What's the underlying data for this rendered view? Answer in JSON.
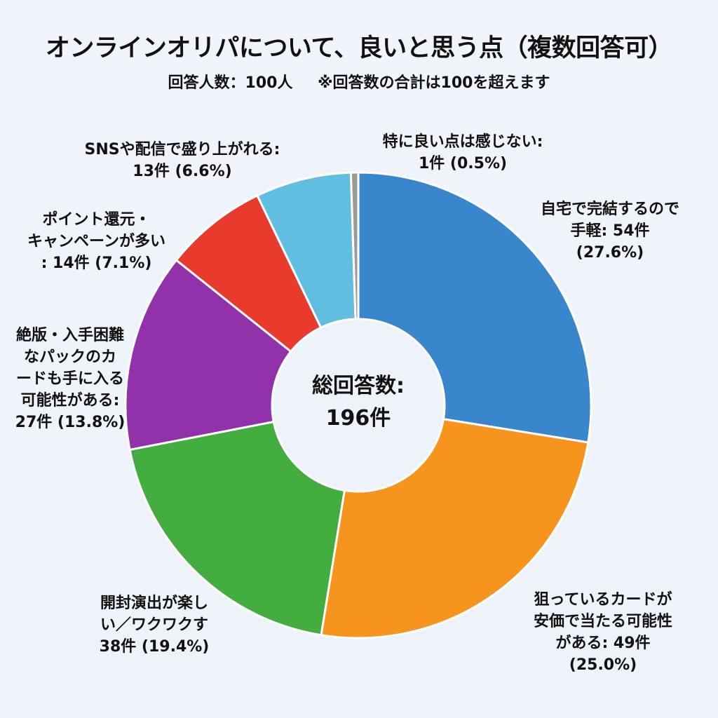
{
  "header": {
    "title": "オンラインオリパについて、良いと思う点（複数回答可）",
    "respondents": "回答人数：100人",
    "note": "※回答数の合計は100を超えます"
  },
  "center": {
    "label": "総回答数:",
    "value": "196件"
  },
  "labels": {
    "home": "自宅で完結するので\n手軽: 54件\n(27.6%)",
    "cheap": "狙っているカードが\n安価で当たる可能性\nがある: 49件\n(25.0%)",
    "fun": "開封演出が楽し\nい／ワクワクす\n38件 (19.4%)",
    "rare": "絶版・入手困難\nなパックのカ\nードも手に入る\n可能性がある:\n27件 (13.8%)",
    "points": "ポイント還元・\nキャンペーンが多い\n: 14件 (7.1%)",
    "sns": "SNSや配信で盛り上がれる:\n13件 (6.6%)",
    "none": "特に良い点は感じない:\n1件 (0.5%)"
  },
  "chart_data": {
    "type": "pie",
    "subtype": "donut",
    "title": "オンラインオリパについて、良いと思う点（複数回答可）",
    "subtitle": "回答人数：100人 ※回答数の合計は100を超えます",
    "center_text": "総回答数: 196件",
    "total": 196,
    "start_angle": "12 o'clock, clockwise",
    "categories": [
      "自宅で完結するので手軽",
      "狙っているカードが安価で当たる可能性がある",
      "開封演出が楽しい／ワクワクする",
      "絶版・入手困難なパックのカードも手に入る可能性がある",
      "ポイント還元・キャンペーンが多い",
      "SNSや配信で盛り上がれる",
      "特に良い点は感じない"
    ],
    "values": [
      54,
      49,
      38,
      27,
      14,
      13,
      1
    ],
    "percentages": [
      27.6,
      25.0,
      19.4,
      13.8,
      7.1,
      6.6,
      0.5
    ],
    "colors": [
      "#3a86cc",
      "#f7941d",
      "#44ad3f",
      "#9232ab",
      "#e83b2e",
      "#62bee0",
      "#9a9a9a"
    ],
    "legend": "none (direct labels)"
  }
}
